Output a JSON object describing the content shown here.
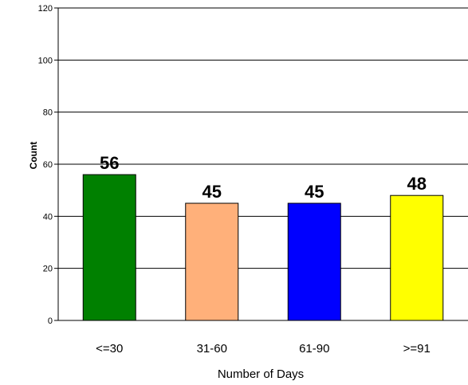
{
  "chart_data": {
    "type": "bar",
    "categories": [
      "<=30",
      "31-60",
      "61-90",
      ">=91"
    ],
    "values": [
      56,
      45,
      45,
      48
    ],
    "colors": [
      "#008000",
      "#ffb07a",
      "#0000ff",
      "#ffff00"
    ],
    "xlabel": "Number of Days",
    "ylabel": "Count",
    "ylim": [
      0,
      120
    ],
    "yticks": [
      "0",
      "20",
      "40",
      "60",
      "80",
      "100",
      "120"
    ],
    "data_labels": [
      "56",
      "45",
      "45",
      "48"
    ],
    "grid": true,
    "legend": "none"
  }
}
